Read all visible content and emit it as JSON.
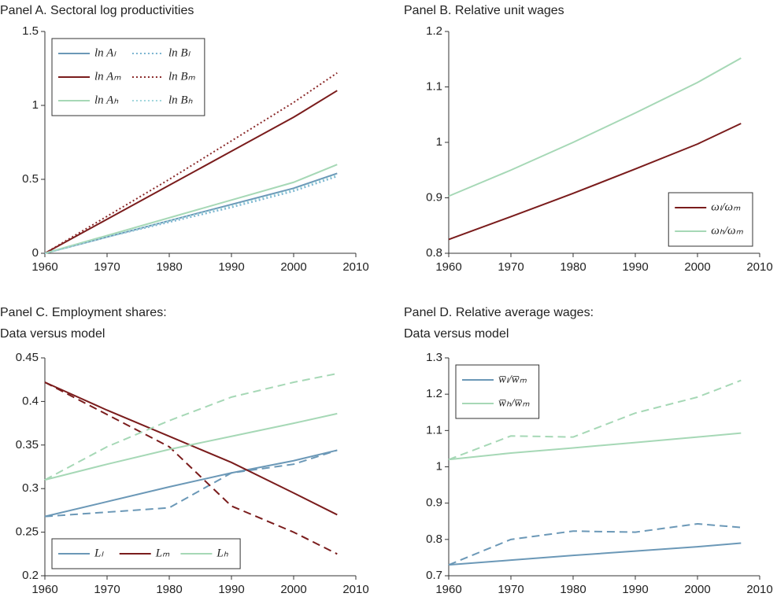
{
  "chart_data": [
    {
      "type": "line",
      "title": [
        "Panel A. Sectoral log productivities"
      ],
      "x": [
        1960,
        1970,
        1980,
        1990,
        2000,
        2007
      ],
      "xlim": [
        1960,
        2010
      ],
      "xticks": [
        1960,
        1970,
        1980,
        1990,
        2000,
        2010
      ],
      "ylim": [
        0,
        1.5
      ],
      "yticks": [
        0,
        0.5,
        1,
        1.5
      ],
      "legend": "upper left",
      "legend_columns": 2,
      "series": [
        {
          "name": "ln Aₗ",
          "color": "#6b98b7",
          "dash": "solid",
          "values": [
            0,
            0.11,
            0.22,
            0.33,
            0.44,
            0.54
          ]
        },
        {
          "name": "ln Bₗ",
          "color": "#7ab3d0",
          "dash": "dotted",
          "values": [
            0,
            0.11,
            0.21,
            0.31,
            0.42,
            0.52
          ]
        },
        {
          "name": "ln Aₘ",
          "color": "#7a1c1c",
          "dash": "solid",
          "values": [
            0,
            0.23,
            0.46,
            0.69,
            0.92,
            1.1
          ]
        },
        {
          "name": "ln Bₘ",
          "color": "#8b2a2a",
          "dash": "dotted",
          "values": [
            0,
            0.25,
            0.5,
            0.76,
            1.02,
            1.22
          ]
        },
        {
          "name": "ln Aₕ",
          "color": "#a6d8b6",
          "dash": "solid",
          "values": [
            0,
            0.12,
            0.24,
            0.36,
            0.48,
            0.6
          ]
        },
        {
          "name": "ln Bₕ",
          "color": "#9fd6dc",
          "dash": "dotted",
          "values": [
            0,
            0.11,
            0.22,
            0.32,
            0.43,
            0.53
          ]
        }
      ]
    },
    {
      "type": "line",
      "title": [
        "Panel B. Relative unit wages"
      ],
      "x": [
        1960,
        1970,
        1980,
        1990,
        2000,
        2007
      ],
      "xlim": [
        1960,
        2010
      ],
      "xticks": [
        1960,
        1970,
        1980,
        1990,
        2000,
        2010
      ],
      "ylim": [
        0.8,
        1.2
      ],
      "yticks": [
        0.8,
        0.9,
        1,
        1.1,
        1.2
      ],
      "legend": "lower right",
      "legend_columns": 1,
      "series": [
        {
          "name": "ωₗ/ωₘ",
          "color": "#7a1c1c",
          "dash": "solid",
          "values": [
            0.825,
            0.866,
            0.908,
            0.952,
            0.997,
            1.034
          ]
        },
        {
          "name": "ωₕ/ωₘ",
          "color": "#a6d8b6",
          "dash": "solid",
          "values": [
            0.903,
            0.95,
            1.0,
            1.053,
            1.108,
            1.152
          ]
        }
      ]
    },
    {
      "type": "line",
      "title": [
        "Panel C. Employment shares:",
        "Data versus model"
      ],
      "x": [
        1960,
        1970,
        1980,
        1990,
        2000,
        2007
      ],
      "xlim": [
        1960,
        2010
      ],
      "xticks": [
        1960,
        1970,
        1980,
        1990,
        2000,
        2010
      ],
      "ylim": [
        0.2,
        0.45
      ],
      "yticks": [
        0.2,
        0.25,
        0.3,
        0.35,
        0.4,
        0.45
      ],
      "legend": "lower left",
      "legend_columns": 3,
      "series": [
        {
          "name": "Lₗ",
          "color": "#6b98b7",
          "dash": "solid",
          "values": [
            0.268,
            0.285,
            0.302,
            0.318,
            0.332,
            0.344
          ],
          "data_values": [
            0.268,
            0.273,
            0.278,
            0.318,
            0.328,
            0.344
          ]
        },
        {
          "name": "Lₘ",
          "color": "#7a1c1c",
          "dash": "solid",
          "values": [
            0.422,
            0.39,
            0.36,
            0.33,
            0.295,
            0.27
          ],
          "data_values": [
            0.422,
            0.385,
            0.348,
            0.28,
            0.25,
            0.225
          ]
        },
        {
          "name": "Lₕ",
          "color": "#a6d8b6",
          "dash": "solid",
          "values": [
            0.31,
            0.328,
            0.345,
            0.36,
            0.375,
            0.386
          ],
          "data_values": [
            0.31,
            0.348,
            0.378,
            0.405,
            0.422,
            0.432
          ]
        }
      ]
    },
    {
      "type": "line",
      "title": [
        "Panel D. Relative average wages:",
        "Data versus model"
      ],
      "x": [
        1960,
        1970,
        1980,
        1990,
        2000,
        2007
      ],
      "xlim": [
        1960,
        2010
      ],
      "xticks": [
        1960,
        1970,
        1980,
        1990,
        2000,
        2010
      ],
      "ylim": [
        0.7,
        1.3
      ],
      "yticks": [
        0.7,
        0.8,
        0.9,
        1,
        1.1,
        1.2,
        1.3
      ],
      "legend": "upper left",
      "legend_columns": 1,
      "series": [
        {
          "name": "w̅ₗ/w̅ₘ",
          "color": "#6b98b7",
          "dash": "solid",
          "values": [
            0.73,
            0.743,
            0.756,
            0.768,
            0.78,
            0.79
          ],
          "data_values": [
            0.73,
            0.8,
            0.823,
            0.82,
            0.843,
            0.833
          ]
        },
        {
          "name": "w̅ₕ/w̅ₘ",
          "color": "#a6d8b6",
          "dash": "solid",
          "values": [
            1.02,
            1.038,
            1.052,
            1.067,
            1.082,
            1.093
          ],
          "data_values": [
            1.02,
            1.085,
            1.082,
            1.148,
            1.192,
            1.238
          ]
        }
      ]
    }
  ]
}
